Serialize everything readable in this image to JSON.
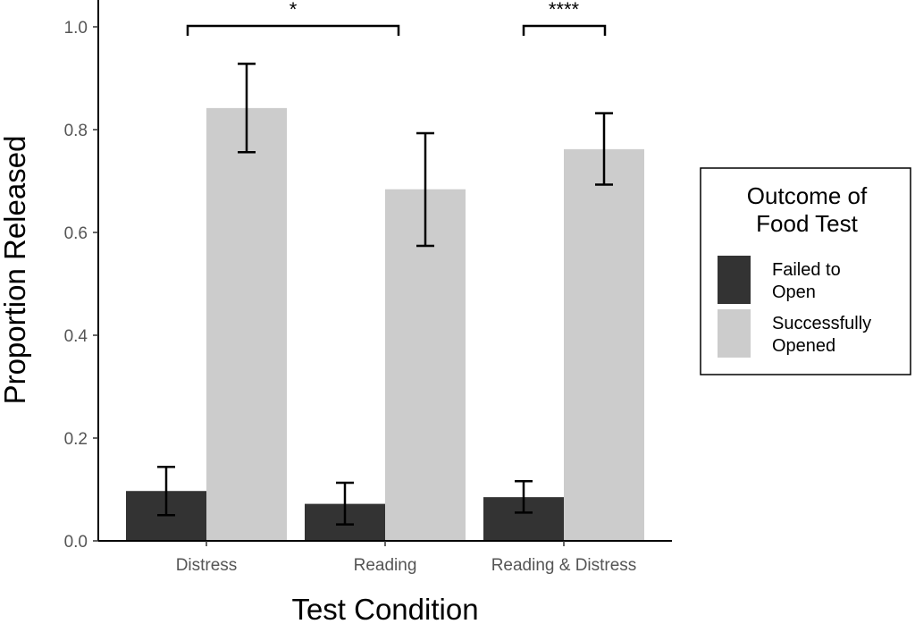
{
  "chart_data": {
    "type": "bar",
    "title": "",
    "xlabel": "Test Condition",
    "ylabel": "Proportion Released",
    "ylim": [
      0,
      1.05
    ],
    "yticks": [
      "0.0",
      "0.2",
      "0.4",
      "0.6",
      "0.8",
      "1.0"
    ],
    "categories": [
      "Distress",
      "Reading",
      "Reading & Distress"
    ],
    "series": [
      {
        "name": "Failed to Open",
        "color": "#333333",
        "values": [
          0.097,
          0.072,
          0.085
        ],
        "error_low": [
          0.05,
          0.032,
          0.055
        ],
        "error_high": [
          0.144,
          0.113,
          0.116
        ]
      },
      {
        "name": "Successfully Opened",
        "color": "#cccccc",
        "values": [
          0.842,
          0.684,
          0.762
        ],
        "error_low": [
          0.756,
          0.574,
          0.693
        ],
        "error_high": [
          0.928,
          0.793,
          0.832
        ]
      }
    ],
    "legend": {
      "title_lines": [
        "Outcome of",
        "Food Test"
      ],
      "items": [
        {
          "lines": [
            "Failed to",
            "Open"
          ],
          "color": "#333333"
        },
        {
          "lines": [
            "Successfully",
            "Opened"
          ],
          "color": "#cccccc"
        }
      ],
      "placement": "right"
    },
    "significance": [
      {
        "label": "*",
        "from_category": 0,
        "to_category": 1,
        "series": 1
      },
      {
        "label": "****",
        "from_category": 2,
        "to_category": 2,
        "between_series": true
      }
    ],
    "grid": false
  }
}
